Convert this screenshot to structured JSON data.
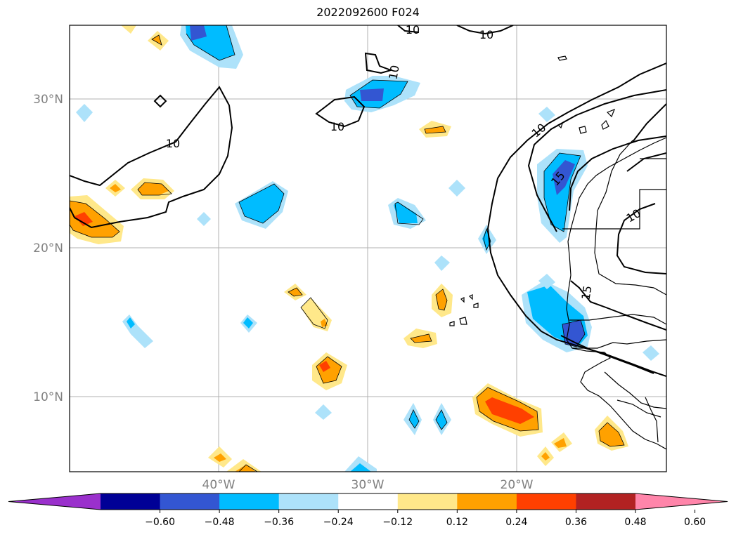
{
  "title": "2022092600 F024",
  "map": {
    "lat_ticks": [
      "30°N",
      "20°N",
      "10°N"
    ],
    "lon_ticks": [
      "40°W",
      "30°W",
      "20°W"
    ],
    "contour_labels": [
      "10",
      "10",
      "10",
      "10",
      "10",
      "10",
      "15",
      "15",
      "10"
    ]
  },
  "colorbar": {
    "colors": [
      "#9a30cc",
      "#000096",
      "#3356d2",
      "#00bcff",
      "#ade2fa",
      "#ffffff",
      "#ffe88a",
      "#ffa100",
      "#ff4000",
      "#b22222",
      "#ff85aa"
    ],
    "labels": [
      "−0.60",
      "−0.48",
      "−0.36",
      "−0.24",
      "−0.12",
      "0.12",
      "0.24",
      "0.36",
      "0.48",
      "0.60"
    ]
  },
  "colors": {
    "light_blue": "#ade2fa",
    "cyan": "#00bcff",
    "blue": "#3356d2",
    "yellow": "#ffe88a",
    "orange": "#ffa100",
    "red_orange": "#ff4000",
    "grid": "#b0b0b0"
  }
}
